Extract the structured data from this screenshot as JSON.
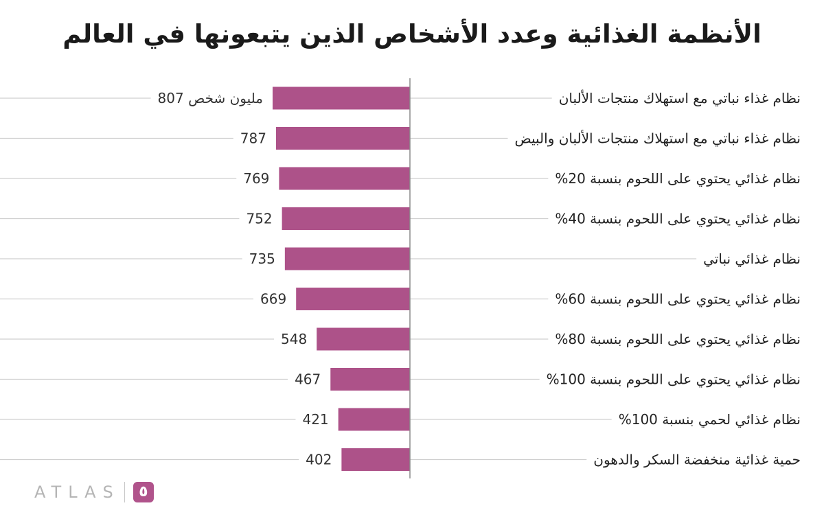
{
  "chart_data": {
    "type": "bar",
    "orientation": "horizontal",
    "title": "الأنظمة الغذائية وعدد الأشخاص الذين يتبعونها في العالم",
    "categories": [
      "نظام غذاء نباتي مع استهلاك منتجات الألبان",
      "نظام غذاء نباتي مع استهلاك منتجات الألبان والبيض",
      "نظام غذائي يحتوي على اللحوم بنسبة 20%",
      "نظام غذائي يحتوي على اللحوم بنسبة 40%",
      "نظام غذائي نباتي",
      "نظام غذائي يحتوي على اللحوم بنسبة 60%",
      "نظام غذائي يحتوي على اللحوم بنسبة 80%",
      "نظام غذائي يحتوي على اللحوم بنسبة 100%",
      "نظام غذائي لحمي بنسبة 100%",
      "حمية غذائية منخفضة السكر والدهون"
    ],
    "values": [
      807,
      787,
      769,
      752,
      735,
      669,
      548,
      467,
      421,
      402
    ],
    "value_labels": [
      "807 مليون شخص",
      "787",
      "769",
      "752",
      "735",
      "669",
      "548",
      "467",
      "421",
      "402"
    ],
    "bar_color": "#ad5289",
    "grid": true,
    "xlim": [
      0,
      2400
    ]
  },
  "brand": {
    "logo_text": "ATLAS",
    "logo_mark": "٥"
  }
}
